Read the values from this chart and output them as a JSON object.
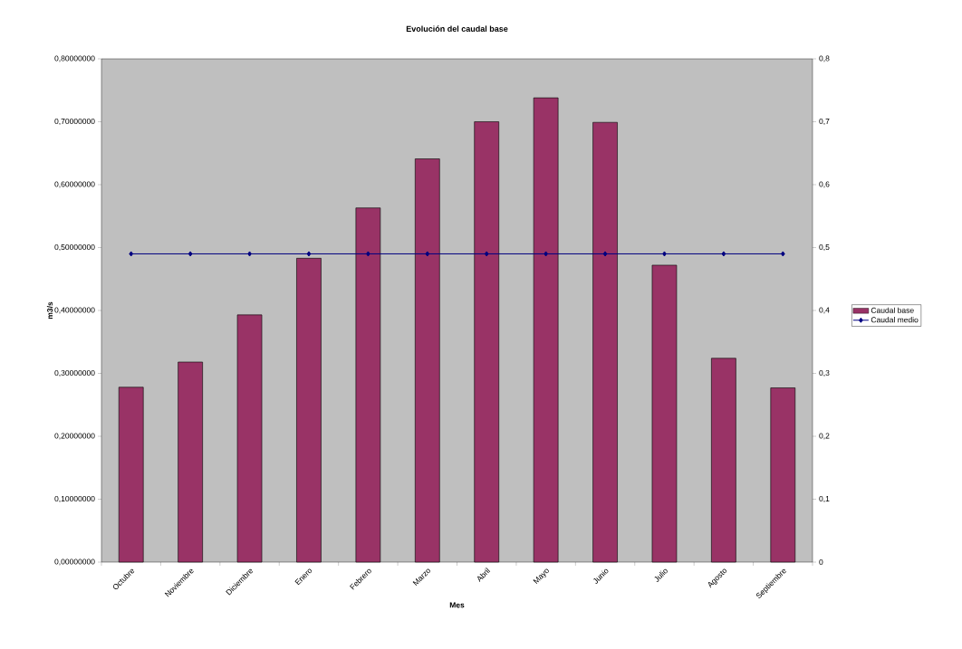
{
  "chart_data": {
    "type": "bar",
    "title": "Evolución del caudal base",
    "xlabel": "Mes",
    "ylabel": "m3/s",
    "categories": [
      "Octubre",
      "Noviembre",
      "Diciembre",
      "Enero",
      "Febrero",
      "Marzo",
      "Abril",
      "Mayo",
      "Junio",
      "Julio",
      "Agosto",
      "Septiembre"
    ],
    "series": [
      {
        "name": "Caudal base",
        "color": "#993366",
        "values": [
          0.278,
          0.318,
          0.393,
          0.483,
          0.563,
          0.641,
          0.7,
          0.738,
          0.699,
          0.472,
          0.324,
          0.277
        ]
      },
      {
        "name": "Caudal medio",
        "type": "line",
        "axis": "y2",
        "color": "#000080",
        "marker": "diamond",
        "line_style": "solid",
        "values": [
          0.49,
          0.49,
          0.49,
          0.49,
          0.49,
          0.49,
          0.49,
          0.49,
          0.49,
          0.49,
          0.49,
          0.49
        ]
      }
    ],
    "ylim": [
      0,
      0.8
    ],
    "yticks": [
      {
        "value": 0,
        "label": "0,00000000"
      },
      {
        "value": 0.1,
        "label": "0,10000000"
      },
      {
        "value": 0.2,
        "label": "0,20000000"
      },
      {
        "value": 0.3,
        "label": "0,30000000"
      },
      {
        "value": 0.4,
        "label": "0,40000000"
      },
      {
        "value": 0.5,
        "label": "0,50000000"
      },
      {
        "value": 0.6,
        "label": "0,60000000"
      },
      {
        "value": 0.7,
        "label": "0,70000000"
      },
      {
        "value": 0.8,
        "label": "0,80000000"
      }
    ],
    "y2lim": [
      0,
      0.8
    ],
    "y2ticks": [
      {
        "value": 0,
        "label": "0"
      },
      {
        "value": 0.1,
        "label": "0,1"
      },
      {
        "value": 0.2,
        "label": "0,2"
      },
      {
        "value": 0.3,
        "label": "0,3"
      },
      {
        "value": 0.4,
        "label": "0,4"
      },
      {
        "value": 0.5,
        "label": "0,5"
      },
      {
        "value": 0.6,
        "label": "0,6"
      },
      {
        "value": 0.7,
        "label": "0,7"
      },
      {
        "value": 0.8,
        "label": "0,8"
      }
    ],
    "legend": "right"
  }
}
